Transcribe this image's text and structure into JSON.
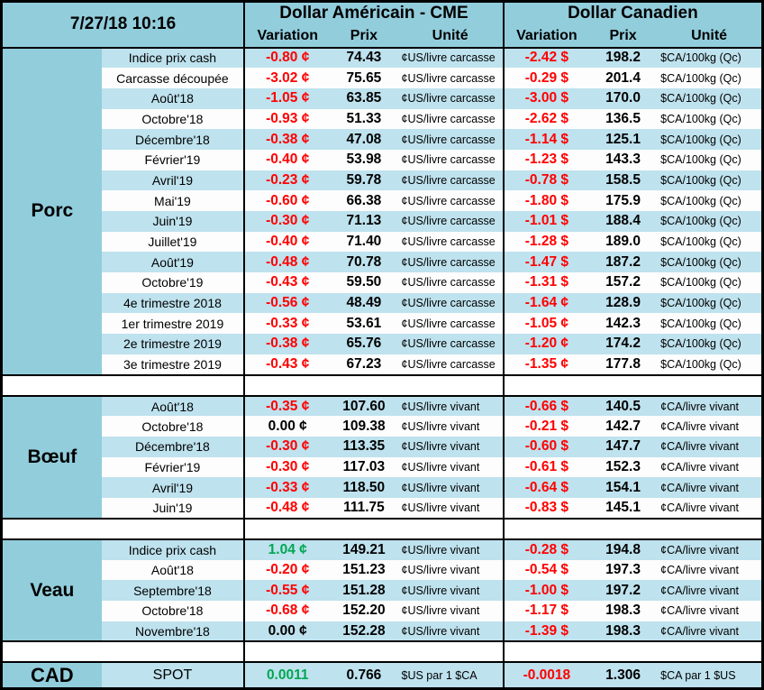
{
  "header": {
    "timestamp": "7/27/18 10:16",
    "us": {
      "title": "Dollar Américain - CME",
      "cols": [
        "Variation",
        "Prix",
        "Unité"
      ]
    },
    "ca": {
      "title": "Dollar Canadien",
      "cols": [
        "Variation",
        "Prix",
        "Unité"
      ]
    }
  },
  "colors": {
    "header_bg": "#92CDDC",
    "stripe_blue": "#BEE2EE",
    "negative_red": "#FF0000",
    "positive_green": "#00A651"
  },
  "sections": [
    {
      "name": "Porc",
      "rows": [
        {
          "label": "Indice prix cash",
          "us": {
            "var": "-0.80 ¢",
            "tone": "neg",
            "price": "74.43",
            "unit": "¢US/livre carcasse"
          },
          "ca": {
            "var": "-2.42 $",
            "tone": "neg",
            "price": "198.2",
            "unit": "$CA/100kg (Qc)"
          }
        },
        {
          "label": "Carcasse découpée",
          "us": {
            "var": "-3.02 ¢",
            "tone": "neg",
            "price": "75.65",
            "unit": "¢US/livre carcasse"
          },
          "ca": {
            "var": "-0.29 $",
            "tone": "neg",
            "price": "201.4",
            "unit": "$CA/100kg (Qc)"
          }
        },
        {
          "label": "Août'18",
          "us": {
            "var": "-1.05 ¢",
            "tone": "neg",
            "price": "63.85",
            "unit": "¢US/livre carcasse"
          },
          "ca": {
            "var": "-3.00 $",
            "tone": "neg",
            "price": "170.0",
            "unit": "$CA/100kg (Qc)"
          }
        },
        {
          "label": "Octobre'18",
          "us": {
            "var": "-0.93 ¢",
            "tone": "neg",
            "price": "51.33",
            "unit": "¢US/livre carcasse"
          },
          "ca": {
            "var": "-2.62 $",
            "tone": "neg",
            "price": "136.5",
            "unit": "$CA/100kg (Qc)"
          }
        },
        {
          "label": "Décembre'18",
          "us": {
            "var": "-0.38 ¢",
            "tone": "neg",
            "price": "47.08",
            "unit": "¢US/livre carcasse"
          },
          "ca": {
            "var": "-1.14 $",
            "tone": "neg",
            "price": "125.1",
            "unit": "$CA/100kg (Qc)"
          }
        },
        {
          "label": "Février'19",
          "us": {
            "var": "-0.40 ¢",
            "tone": "neg",
            "price": "53.98",
            "unit": "¢US/livre carcasse"
          },
          "ca": {
            "var": "-1.23 $",
            "tone": "neg",
            "price": "143.3",
            "unit": "$CA/100kg (Qc)"
          }
        },
        {
          "label": "Avril'19",
          "us": {
            "var": "-0.23 ¢",
            "tone": "neg",
            "price": "59.78",
            "unit": "¢US/livre carcasse"
          },
          "ca": {
            "var": "-0.78 $",
            "tone": "neg",
            "price": "158.5",
            "unit": "$CA/100kg (Qc)"
          }
        },
        {
          "label": "Mai'19",
          "us": {
            "var": "-0.60 ¢",
            "tone": "neg",
            "price": "66.38",
            "unit": "¢US/livre carcasse"
          },
          "ca": {
            "var": "-1.80 $",
            "tone": "neg",
            "price": "175.9",
            "unit": "$CA/100kg (Qc)"
          }
        },
        {
          "label": "Juin'19",
          "us": {
            "var": "-0.30 ¢",
            "tone": "neg",
            "price": "71.13",
            "unit": "¢US/livre carcasse"
          },
          "ca": {
            "var": "-1.01 $",
            "tone": "neg",
            "price": "188.4",
            "unit": "$CA/100kg (Qc)"
          }
        },
        {
          "label": "Juillet'19",
          "us": {
            "var": "-0.40 ¢",
            "tone": "neg",
            "price": "71.40",
            "unit": "¢US/livre carcasse"
          },
          "ca": {
            "var": "-1.28 $",
            "tone": "neg",
            "price": "189.0",
            "unit": "$CA/100kg (Qc)"
          }
        },
        {
          "label": "Août'19",
          "us": {
            "var": "-0.48 ¢",
            "tone": "neg",
            "price": "70.78",
            "unit": "¢US/livre carcasse"
          },
          "ca": {
            "var": "-1.47 $",
            "tone": "neg",
            "price": "187.2",
            "unit": "$CA/100kg (Qc)"
          }
        },
        {
          "label": "Octobre'19",
          "us": {
            "var": "-0.43 ¢",
            "tone": "neg",
            "price": "59.50",
            "unit": "¢US/livre carcasse"
          },
          "ca": {
            "var": "-1.31 $",
            "tone": "neg",
            "price": "157.2",
            "unit": "$CA/100kg (Qc)"
          }
        },
        {
          "label": "4e trimestre 2018",
          "us": {
            "var": "-0.56 ¢",
            "tone": "neg",
            "price": "48.49",
            "unit": "¢US/livre carcasse"
          },
          "ca": {
            "var": "-1.64 ¢",
            "tone": "neg",
            "price": "128.9",
            "unit": "$CA/100kg (Qc)"
          }
        },
        {
          "label": "1er trimestre 2019",
          "us": {
            "var": "-0.33 ¢",
            "tone": "neg",
            "price": "53.61",
            "unit": "¢US/livre carcasse"
          },
          "ca": {
            "var": "-1.05 ¢",
            "tone": "neg",
            "price": "142.3",
            "unit": "$CA/100kg (Qc)"
          }
        },
        {
          "label": "2e trimestre 2019",
          "us": {
            "var": "-0.38 ¢",
            "tone": "neg",
            "price": "65.76",
            "unit": "¢US/livre carcasse"
          },
          "ca": {
            "var": "-1.20 ¢",
            "tone": "neg",
            "price": "174.2",
            "unit": "$CA/100kg (Qc)"
          }
        },
        {
          "label": "3e trimestre 2019",
          "us": {
            "var": "-0.43 ¢",
            "tone": "neg",
            "price": "67.23",
            "unit": "¢US/livre carcasse"
          },
          "ca": {
            "var": "-1.35 ¢",
            "tone": "neg",
            "price": "177.8",
            "unit": "$CA/100kg (Qc)"
          }
        }
      ]
    },
    {
      "name": "Bœuf",
      "rows": [
        {
          "label": "Août'18",
          "us": {
            "var": "-0.35 ¢",
            "tone": "neg",
            "price": "107.60",
            "unit": "¢US/livre vivant"
          },
          "ca": {
            "var": "-0.66 $",
            "tone": "neg",
            "price": "140.5",
            "unit": "¢CA/livre vivant"
          }
        },
        {
          "label": "Octobre'18",
          "us": {
            "var": "0.00 ¢",
            "tone": "zero",
            "price": "109.38",
            "unit": "¢US/livre vivant"
          },
          "ca": {
            "var": "-0.21 $",
            "tone": "neg",
            "price": "142.7",
            "unit": "¢CA/livre vivant"
          }
        },
        {
          "label": "Décembre'18",
          "us": {
            "var": "-0.30 ¢",
            "tone": "neg",
            "price": "113.35",
            "unit": "¢US/livre vivant"
          },
          "ca": {
            "var": "-0.60 $",
            "tone": "neg",
            "price": "147.7",
            "unit": "¢CA/livre vivant"
          }
        },
        {
          "label": "Février'19",
          "us": {
            "var": "-0.30 ¢",
            "tone": "neg",
            "price": "117.03",
            "unit": "¢US/livre vivant"
          },
          "ca": {
            "var": "-0.61 $",
            "tone": "neg",
            "price": "152.3",
            "unit": "¢CA/livre vivant"
          }
        },
        {
          "label": "Avril'19",
          "us": {
            "var": "-0.33 ¢",
            "tone": "neg",
            "price": "118.50",
            "unit": "¢US/livre vivant"
          },
          "ca": {
            "var": "-0.64 $",
            "tone": "neg",
            "price": "154.1",
            "unit": "¢CA/livre vivant"
          }
        },
        {
          "label": "Juin'19",
          "us": {
            "var": "-0.48 ¢",
            "tone": "neg",
            "price": "111.75",
            "unit": "¢US/livre vivant"
          },
          "ca": {
            "var": "-0.83 $",
            "tone": "neg",
            "price": "145.1",
            "unit": "¢CA/livre vivant"
          }
        }
      ]
    },
    {
      "name": "Veau",
      "rows": [
        {
          "label": "Indice prix cash",
          "us": {
            "var": "1.04 ¢",
            "tone": "pos",
            "price": "149.21",
            "unit": "¢US/livre vivant"
          },
          "ca": {
            "var": "-0.28 $",
            "tone": "neg",
            "price": "194.8",
            "unit": "¢CA/livre vivant"
          }
        },
        {
          "label": "Août'18",
          "us": {
            "var": "-0.20 ¢",
            "tone": "neg",
            "price": "151.23",
            "unit": "¢US/livre vivant"
          },
          "ca": {
            "var": "-0.54 $",
            "tone": "neg",
            "price": "197.3",
            "unit": "¢CA/livre vivant"
          }
        },
        {
          "label": "Septembre'18",
          "us": {
            "var": "-0.55 ¢",
            "tone": "neg",
            "price": "151.28",
            "unit": "¢US/livre vivant"
          },
          "ca": {
            "var": "-1.00 $",
            "tone": "neg",
            "price": "197.2",
            "unit": "¢CA/livre vivant"
          }
        },
        {
          "label": "Octobre'18",
          "us": {
            "var": "-0.68 ¢",
            "tone": "neg",
            "price": "152.20",
            "unit": "¢US/livre vivant"
          },
          "ca": {
            "var": "-1.17 $",
            "tone": "neg",
            "price": "198.3",
            "unit": "¢CA/livre vivant"
          }
        },
        {
          "label": "Novembre'18",
          "us": {
            "var": "0.00 ¢",
            "tone": "zero",
            "price": "152.28",
            "unit": "¢US/livre vivant"
          },
          "ca": {
            "var": "-1.39 $",
            "tone": "neg",
            "price": "198.3",
            "unit": "¢CA/livre vivant"
          }
        }
      ]
    },
    {
      "name": "CAD",
      "kind": "cad",
      "rows": [
        {
          "label": "SPOT",
          "us": {
            "var": "0.0011",
            "tone": "pos",
            "price": "0.766",
            "unit": "$US par 1 $CA"
          },
          "ca": {
            "var": "-0.0018",
            "tone": "neg",
            "price": "1.306",
            "unit": "$CA par 1 $US"
          }
        }
      ]
    }
  ]
}
